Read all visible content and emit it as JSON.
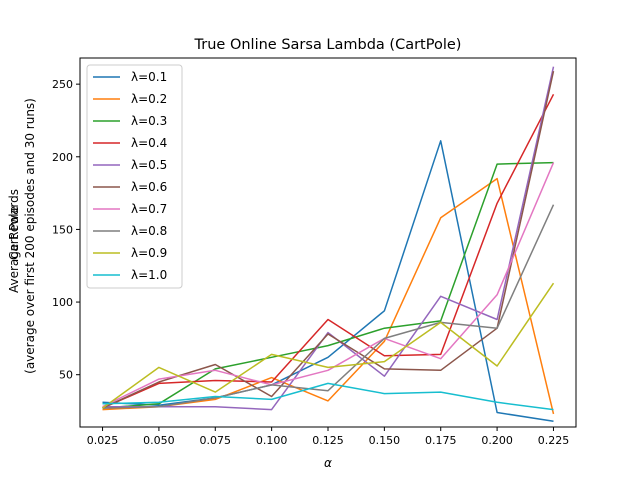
{
  "chart_data": {
    "type": "line",
    "title": "True Online Sarsa Lambda (CartPole)",
    "xlabel": "α",
    "ylabel_lines": [
      "Cart Pole",
      "Average Rewards",
      "(average over first 200 episodes and 30 runs)"
    ],
    "x": [
      0.025,
      0.05,
      0.075,
      0.1,
      0.125,
      0.15,
      0.175,
      0.2,
      0.225
    ],
    "xticks": [
      "0.025",
      "0.050",
      "0.075",
      "0.100",
      "0.125",
      "0.150",
      "0.175",
      "0.200",
      "0.225"
    ],
    "yticks": [
      50,
      100,
      150,
      200,
      250
    ],
    "xlim": [
      0.015,
      0.235
    ],
    "ylim": [
      14,
      268
    ],
    "grid": false,
    "legend_position": "upper-left",
    "series": [
      {
        "name": "λ=0.1",
        "color": "#1f77b4",
        "values": [
          31,
          29,
          34,
          43,
          62,
          94,
          211,
          24,
          18
        ]
      },
      {
        "name": "λ=0.2",
        "color": "#ff7f0e",
        "values": [
          26,
          28,
          33,
          48,
          32,
          73,
          158,
          185,
          23
        ]
      },
      {
        "name": "λ=0.3",
        "color": "#2ca02c",
        "values": [
          27,
          30,
          54,
          62,
          70,
          82,
          87,
          195,
          196
        ]
      },
      {
        "name": "λ=0.4",
        "color": "#d62728",
        "values": [
          27,
          44,
          46,
          45,
          88,
          63,
          64,
          168,
          243
        ]
      },
      {
        "name": "λ=0.5",
        "color": "#9467bd",
        "values": [
          28,
          28,
          28,
          26,
          79,
          49,
          104,
          88,
          262
        ]
      },
      {
        "name": "λ=0.6",
        "color": "#8c564b",
        "values": [
          27,
          45,
          57,
          35,
          78,
          54,
          53,
          82,
          259
        ]
      },
      {
        "name": "λ=0.7",
        "color": "#e377c2",
        "values": [
          28,
          47,
          53,
          43,
          53,
          75,
          61,
          105,
          196
        ]
      },
      {
        "name": "λ=0.8",
        "color": "#7f7f7f",
        "values": [
          27,
          28,
          34,
          43,
          39,
          75,
          86,
          82,
          167
        ]
      },
      {
        "name": "λ=0.9",
        "color": "#bcbd22",
        "values": [
          27,
          55,
          38,
          64,
          55,
          59,
          86,
          56,
          113
        ]
      },
      {
        "name": "λ=1.0",
        "color": "#17becf",
        "values": [
          30,
          31,
          35,
          33,
          44,
          37,
          38,
          31,
          26
        ]
      }
    ]
  }
}
